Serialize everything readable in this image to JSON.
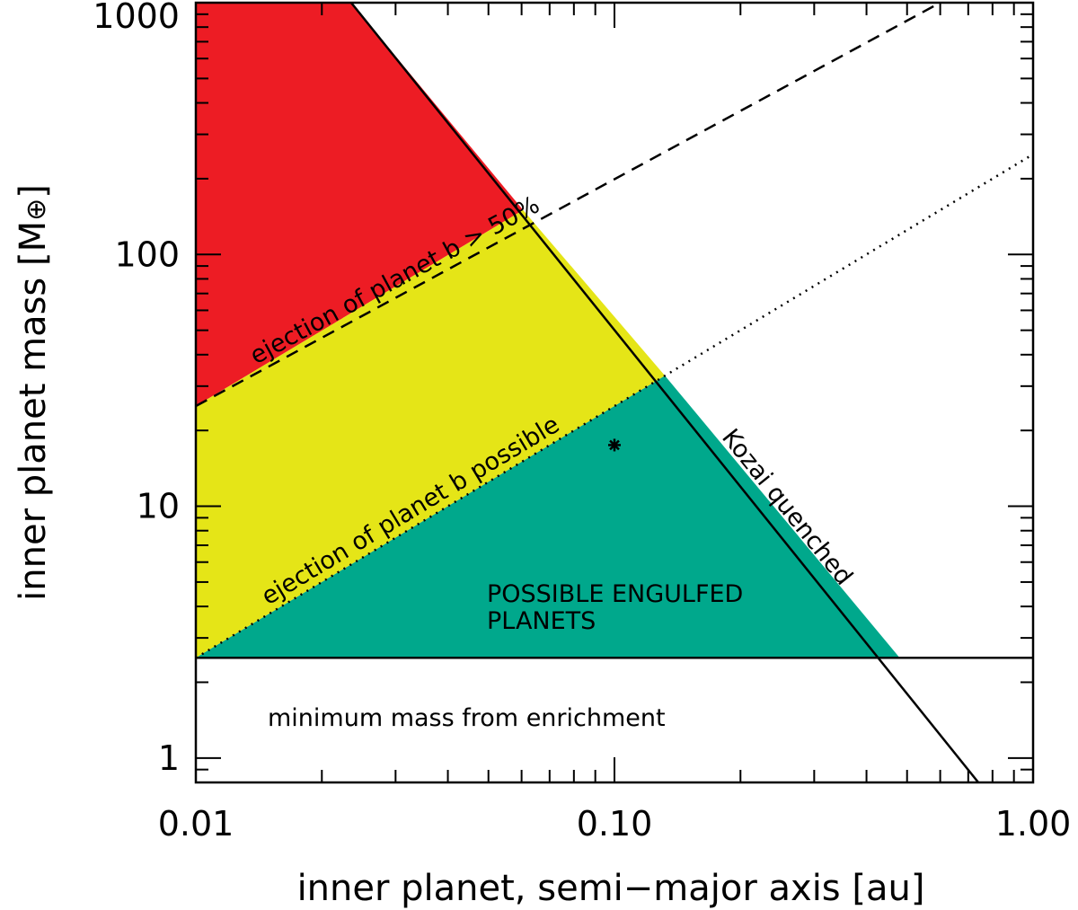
{
  "chart_data": {
    "type": "area",
    "xlabel": "inner planet, semi−major axis [au]",
    "ylabel_main": "inner planet mass [M",
    "ylabel_symbol": "⊕",
    "ylabel_end": "]",
    "x_scale": "log",
    "y_scale": "log",
    "xlim": [
      0.01,
      1.0
    ],
    "ylim": [
      0.8,
      1000
    ],
    "x_ticks": [
      {
        "value": 0.01,
        "label": "0.01"
      },
      {
        "value": 0.1,
        "label": "0.10"
      },
      {
        "value": 1.0,
        "label": "1.00"
      }
    ],
    "y_ticks": [
      {
        "value": 1,
        "label": "1"
      },
      {
        "value": 10,
        "label": "10"
      },
      {
        "value": 100,
        "label": "100"
      },
      {
        "value": 1000,
        "label": "1000"
      }
    ],
    "grid": false,
    "lines": {
      "kozai": {
        "style": "solid",
        "points": [
          [
            0.0235,
            1000
          ],
          [
            0.74,
            0.8
          ]
        ]
      },
      "ejection_50": {
        "style": "dashed",
        "points": [
          [
            0.01,
            25
          ],
          [
            0.6,
            1000
          ]
        ]
      },
      "ejection_possible": {
        "style": "dotted",
        "points": [
          [
            0.01,
            2.5
          ],
          [
            1.0,
            250
          ]
        ]
      },
      "minimum_mass": {
        "style": "solid",
        "value": 2.5
      }
    },
    "regions": [
      {
        "name": "red",
        "color": "#ED1C24",
        "points": [
          [
            0.01,
            1000
          ],
          [
            0.0235,
            1000
          ],
          [
            0.0605,
            150
          ],
          [
            0.01,
            25
          ]
        ]
      },
      {
        "name": "yellow",
        "color": "#E5E517",
        "points": [
          [
            0.01,
            25
          ],
          [
            0.0605,
            150
          ],
          [
            0.132,
            33
          ],
          [
            0.01,
            2.5
          ]
        ]
      },
      {
        "name": "green",
        "color": "#00A88C",
        "points": [
          [
            0.01,
            2.5
          ],
          [
            0.132,
            33
          ],
          [
            0.48,
            2.5
          ]
        ]
      }
    ],
    "point": {
      "x": 0.1,
      "y": 17.5,
      "marker": "*"
    },
    "annotations": {
      "ejection_50": "ejection of planet b > 50%",
      "ejection_possible": "ejection of planet b possible",
      "kozai": "Kozai quenched",
      "engulfed_line1": "POSSIBLE ENGULFED",
      "engulfed_line2": "PLANETS",
      "minimum_mass": "minimum mass from enrichment"
    }
  }
}
